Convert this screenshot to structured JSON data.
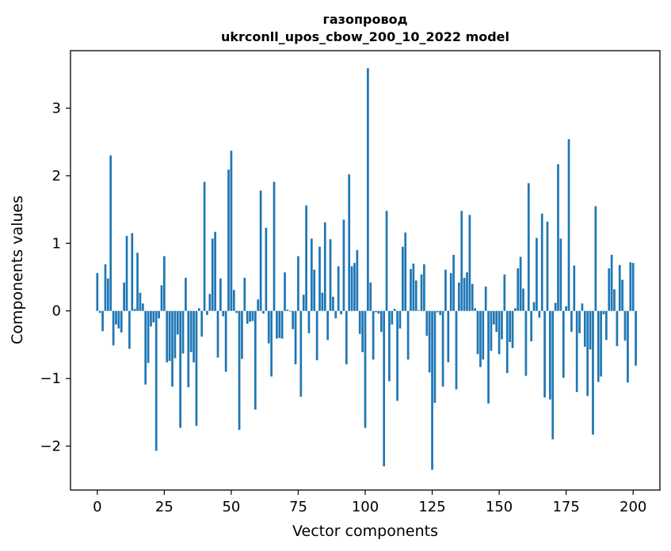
{
  "chart_data": {
    "type": "bar",
    "title_line1": "газопровод",
    "title_line2": "ukrconll_upos_cbow_200_10_2022 model",
    "xlabel": "Vector components",
    "ylabel": "Components values",
    "xlim": [
      -10,
      210
    ],
    "ylim": [
      -2.65,
      3.85
    ],
    "xticks": [
      0,
      25,
      50,
      75,
      100,
      125,
      150,
      175,
      200
    ],
    "yticks": [
      -2,
      -1,
      0,
      1,
      2,
      3
    ],
    "ytick_labels": [
      "−2",
      "−1",
      "0",
      "1",
      "2",
      "3"
    ],
    "bar_color": "#1f77b4",
    "grid": false,
    "values": [
      0.56,
      -0.03,
      -0.3,
      0.69,
      0.48,
      2.3,
      -0.51,
      -0.2,
      -0.26,
      -0.32,
      0.42,
      1.11,
      -0.56,
      1.15,
      0.03,
      0.86,
      0.27,
      0.11,
      -1.09,
      -0.77,
      -0.23,
      -0.17,
      -2.07,
      -0.11,
      0.38,
      0.81,
      -0.76,
      -0.74,
      -1.12,
      -0.7,
      -0.35,
      -1.73,
      -0.63,
      0.49,
      -1.13,
      -0.61,
      -0.76,
      -1.7,
      0.04,
      -0.38,
      1.91,
      -0.06,
      0.25,
      1.07,
      1.17,
      -0.69,
      0.48,
      -0.08,
      -0.9,
      2.09,
      2.37,
      0.31,
      -0.03,
      -1.76,
      -0.71,
      0.49,
      -0.19,
      -0.16,
      -0.15,
      -1.46,
      0.17,
      1.78,
      -0.04,
      1.23,
      -0.48,
      -0.97,
      1.91,
      -0.41,
      -0.4,
      -0.41,
      0.57,
      0.02,
      -0.01,
      -0.27,
      -0.79,
      0.81,
      -1.27,
      0.24,
      1.56,
      -0.33,
      1.07,
      0.61,
      -0.73,
      0.95,
      0.27,
      1.31,
      -0.43,
      1.06,
      0.21,
      -0.11,
      0.66,
      -0.05,
      1.35,
      -0.79,
      2.02,
      0.66,
      0.71,
      0.9,
      -0.34,
      -0.61,
      -1.73,
      3.59,
      0.42,
      -0.72,
      -0.02,
      -0.04,
      -0.31,
      -2.3,
      1.48,
      -1.04,
      -0.2,
      0.03,
      -1.33,
      -0.26,
      0.95,
      1.16,
      -0.72,
      0.62,
      0.7,
      0.45,
      0.01,
      0.54,
      0.69,
      -0.37,
      -0.91,
      -2.35,
      -1.36,
      -0.02,
      -0.06,
      -1.12,
      0.61,
      -0.76,
      0.56,
      0.83,
      -1.16,
      0.42,
      1.48,
      0.49,
      0.57,
      1.42,
      0.4,
      0.04,
      -0.64,
      -0.83,
      -0.72,
      0.36,
      -1.37,
      -0.59,
      -0.2,
      -0.31,
      -0.64,
      -0.42,
      0.54,
      -0.92,
      -0.46,
      -0.55,
      0.04,
      0.63,
      0.8,
      0.33,
      -0.96,
      1.89,
      -0.45,
      0.13,
      1.08,
      -0.1,
      1.44,
      -1.28,
      1.32,
      -1.31,
      -1.9,
      0.12,
      2.17,
      1.07,
      -0.99,
      0.07,
      2.54,
      -0.31,
      0.67,
      -1.2,
      -0.33,
      0.11,
      -0.53,
      -1.26,
      -0.57,
      -1.83,
      1.55,
      -1.05,
      -0.97,
      -0.05,
      -0.43,
      0.63,
      0.83,
      0.32,
      -0.52,
      0.68,
      0.46,
      -0.44,
      -1.06,
      0.72,
      0.71,
      -0.81
    ]
  }
}
